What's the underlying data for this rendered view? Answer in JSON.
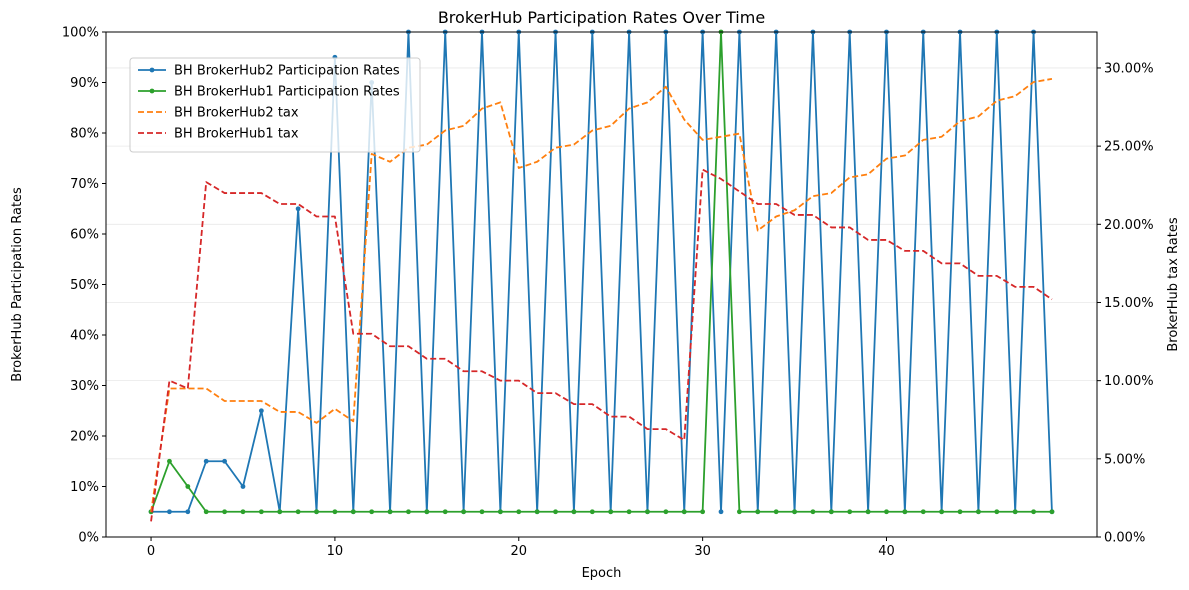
{
  "chart_data": {
    "type": "line",
    "title": "BrokerHub Participation Rates Over Time",
    "xlabel": "Epoch",
    "ylabel_left": "BrokerHub Participation Rates",
    "ylabel_right": "BrokerHub tax Rates",
    "xlim": [
      -2.45,
      51.45
    ],
    "xticks": [
      0,
      10,
      20,
      30,
      40
    ],
    "ylim_left": [
      0,
      100
    ],
    "yticks_left": [
      0,
      10,
      20,
      30,
      40,
      50,
      60,
      70,
      80,
      90,
      100
    ],
    "ytick_labels_left": [
      "0%",
      "10%",
      "20%",
      "30%",
      "40%",
      "50%",
      "60%",
      "70%",
      "80%",
      "90%",
      "100%"
    ],
    "ylim_right": [
      0,
      32.3
    ],
    "yticks_right": [
      0,
      5,
      10,
      15,
      20,
      25,
      30
    ],
    "ytick_labels_right": [
      "0.00%",
      "5.00%",
      "10.00%",
      "15.00%",
      "20.00%",
      "25.00%",
      "30.00%"
    ],
    "grid": true,
    "legend_position": "upper-left",
    "x": [
      0,
      1,
      2,
      3,
      4,
      5,
      6,
      7,
      8,
      9,
      10,
      11,
      12,
      13,
      14,
      15,
      16,
      17,
      18,
      19,
      20,
      21,
      22,
      23,
      24,
      25,
      26,
      27,
      28,
      29,
      30,
      31,
      32,
      33,
      34,
      35,
      36,
      37,
      38,
      39,
      40,
      41,
      42,
      43,
      44,
      45,
      46,
      47,
      48,
      49
    ],
    "series": [
      {
        "name": "BH BrokerHub2 Participation Rates",
        "axis": "left",
        "color": "#1f77b4",
        "style": "solid-marker",
        "values": [
          5,
          5,
          5,
          15,
          15,
          10,
          25,
          5,
          65,
          5,
          95,
          5,
          90,
          5,
          100,
          5,
          100,
          5,
          100,
          5,
          100,
          5,
          100,
          5,
          100,
          5,
          100,
          5,
          100,
          5,
          100,
          5,
          100,
          5,
          100,
          5,
          100,
          5,
          100,
          5,
          100,
          5,
          100,
          5,
          100,
          5,
          100,
          5,
          100,
          5
        ]
      },
      {
        "name": "BH BrokerHub1 Participation Rates",
        "axis": "left",
        "color": "#2ca02c",
        "style": "solid-marker",
        "values": [
          5,
          15,
          10,
          5,
          5,
          5,
          5,
          5,
          5,
          5,
          5,
          5,
          5,
          5,
          5,
          5,
          5,
          5,
          5,
          5,
          5,
          5,
          5,
          5,
          5,
          5,
          5,
          5,
          5,
          5,
          5,
          100,
          5,
          5,
          5,
          5,
          5,
          5,
          5,
          5,
          5,
          5,
          5,
          5,
          5,
          5,
          5,
          5,
          5,
          5
        ]
      },
      {
        "name": "BH BrokerHub2 tax",
        "axis": "right",
        "color": "#ff7f0e",
        "style": "dashed",
        "values": [
          1.6,
          9.5,
          9.5,
          9.5,
          8.7,
          8.7,
          8.7,
          8.0,
          8.0,
          7.3,
          8.2,
          7.4,
          24.5,
          24.0,
          24.9,
          25.1,
          26.0,
          26.3,
          27.4,
          27.8,
          23.6,
          24.0,
          24.9,
          25.1,
          26.0,
          26.3,
          27.4,
          27.8,
          28.8,
          26.7,
          25.4,
          25.6,
          25.8,
          19.6,
          20.5,
          20.9,
          21.8,
          22.0,
          23.0,
          23.2,
          24.2,
          24.4,
          25.4,
          25.6,
          26.6,
          26.9,
          27.9,
          28.2,
          29.1,
          29.3
        ]
      },
      {
        "name": "BH BrokerHub1 tax",
        "axis": "right",
        "color": "#d62728",
        "style": "dashed",
        "values": [
          1.0,
          10.0,
          9.5,
          22.7,
          22.0,
          22.0,
          22.0,
          21.3,
          21.3,
          20.5,
          20.5,
          13.0,
          13.0,
          12.2,
          12.2,
          11.4,
          11.4,
          10.6,
          10.6,
          10.0,
          10.0,
          9.2,
          9.2,
          8.5,
          8.5,
          7.7,
          7.7,
          6.9,
          6.9,
          6.2,
          23.5,
          22.9,
          22.1,
          21.3,
          21.3,
          20.6,
          20.6,
          19.8,
          19.8,
          19.0,
          19.0,
          18.3,
          18.3,
          17.5,
          17.5,
          16.7,
          16.7,
          16.0,
          16.0,
          15.2
        ]
      }
    ]
  }
}
